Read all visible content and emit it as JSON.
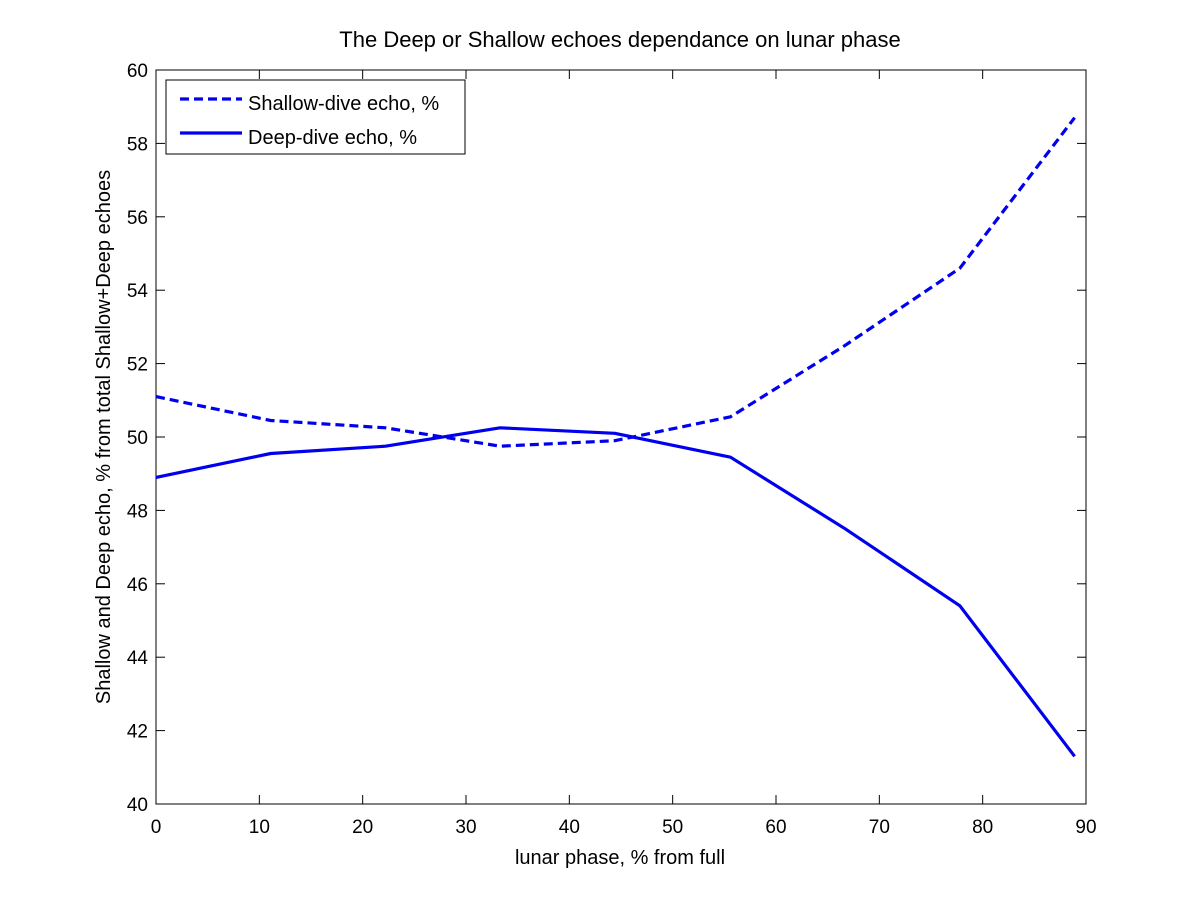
{
  "chart_data": {
    "type": "line",
    "title": "The Deep or Shallow echoes dependance on lunar phase",
    "xlabel": "lunar phase, % from full",
    "ylabel": "Shallow and Deep echo, % from total Shallow+Deep echoes",
    "xlim": [
      0,
      90
    ],
    "ylim": [
      40,
      60
    ],
    "xticks": [
      0,
      10,
      20,
      30,
      40,
      50,
      60,
      70,
      80,
      90
    ],
    "yticks": [
      40,
      42,
      44,
      46,
      48,
      50,
      52,
      54,
      56,
      58,
      60
    ],
    "grid": false,
    "legend_position": "top-left",
    "color": "#0000ee",
    "series": [
      {
        "name": "Shallow-dive echo, %",
        "style": "dashed",
        "x": [
          0,
          11.1,
          22.2,
          33.3,
          44.4,
          55.6,
          66.7,
          77.8,
          88.9
        ],
        "values": [
          51.1,
          50.45,
          50.25,
          49.75,
          49.9,
          50.55,
          52.5,
          54.6,
          58.7
        ]
      },
      {
        "name": "Deep-dive echo, %",
        "style": "solid",
        "x": [
          0,
          11.1,
          22.2,
          33.3,
          44.4,
          55.6,
          66.7,
          77.8,
          88.9
        ],
        "values": [
          48.9,
          49.55,
          49.75,
          50.25,
          50.1,
          49.45,
          47.5,
          45.4,
          41.3
        ]
      }
    ]
  }
}
